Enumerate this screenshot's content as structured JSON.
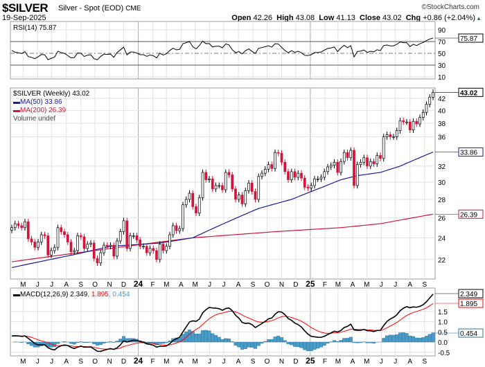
{
  "header": {
    "symbol": "$SILVER",
    "description": "Silver - Spot (EOD)",
    "exchange": "CME",
    "date": "19-Sep-2025",
    "copyright": "©StockCharts.com",
    "open_label": "Open",
    "open": "42.26",
    "high_label": "High",
    "high": "43.08",
    "low_label": "Low",
    "low": "41.13",
    "close_label": "Close",
    "close": "43.02",
    "chg_label": "Chg",
    "chg": "+0.86 (+2.04%)"
  },
  "colors": {
    "up": "#000000",
    "down": "#d2143a",
    "ma50": "#1a1a9c",
    "ma200": "#d2143a",
    "macd": "#000000",
    "signal": "#ff0000",
    "hist": "#4a9cc8",
    "rsi_fill": "#4a7a4a"
  },
  "chart_data": [
    {
      "type": "line",
      "name": "rsi",
      "legend": "RSI(14) 75.87",
      "last_value": "75.87",
      "ticks": [
        "90",
        "70",
        "50",
        "30",
        "10"
      ],
      "tick_values": [
        90,
        70,
        50,
        30,
        10
      ],
      "ylim": [
        10,
        104
      ]
    },
    {
      "type": "candlestick",
      "name": "price",
      "legend": {
        "main": "$SILVER (Weekly) 43.02",
        "ma50": "MA(50) 33.86",
        "ma200": "MA(200) 26.39",
        "volume": "Volume undef"
      },
      "last_value": "43.02",
      "ma50_value": "33.86",
      "ma200_value": "26.39",
      "ticks": [
        "42",
        "40",
        "38",
        "36",
        "32",
        "30",
        "28",
        "26",
        "24",
        "22"
      ],
      "tick_values": [
        42,
        40,
        38,
        36,
        32,
        30,
        28,
        26,
        24,
        22
      ],
      "x_labels": [
        "M",
        "J",
        "J",
        "A",
        "S",
        "O",
        "N",
        "D",
        "24",
        "F",
        "M",
        "A",
        "M",
        "J",
        "J",
        "A",
        "S",
        "O",
        "N",
        "D",
        "25",
        "F",
        "M",
        "A",
        "M",
        "J",
        "J",
        "A",
        "S"
      ],
      "closes": [
        25.0,
        25.4,
        25.2,
        25.0,
        25.6,
        23.9,
        23.6,
        23.1,
        23.6,
        24.3,
        24.2,
        22.4,
        22.8,
        23.1,
        25.0,
        24.6,
        24.3,
        23.6,
        22.7,
        22.8,
        24.2,
        24.1,
        23.0,
        23.4,
        23.5,
        22.1,
        21.7,
        22.6,
        23.3,
        23.2,
        23.3,
        22.3,
        23.7,
        24.6,
        25.7,
        23.0,
        24.2,
        24.2,
        23.8,
        23.2,
        23.2,
        22.6,
        23.0,
        22.8,
        22.0,
        23.4,
        22.8,
        23.2,
        24.3,
        25.2,
        24.7,
        24.9,
        27.4,
        28.0,
        28.7,
        27.2,
        26.5,
        28.2,
        31.2,
        30.3,
        30.4,
        29.2,
        29.6,
        29.6,
        29.1,
        31.2,
        30.9,
        29.2,
        28.0,
        28.5,
        27.5,
        29.0,
        29.9,
        28.9,
        28.0,
        30.7,
        31.1,
        31.6,
        32.2,
        31.7,
        33.8,
        33.7,
        32.5,
        31.3,
        30.3,
        31.3,
        30.6,
        31.1,
        30.5,
        29.4,
        29.3,
        29.6,
        30.4,
        30.4,
        30.6,
        31.3,
        31.9,
        32.1,
        32.5,
        31.2,
        32.6,
        33.8,
        33.1,
        34.1,
        29.6,
        32.2,
        32.5,
        33.1,
        32.0,
        32.6,
        32.3,
        33.4,
        33.0,
        36.0,
        36.3,
        36.0,
        36.0,
        36.9,
        38.4,
        38.2,
        38.2,
        37.0,
        38.3,
        37.9,
        38.9,
        39.7,
        41.0,
        42.2,
        43.02
      ],
      "ma50": [
        [
          0,
          21.3
        ],
        [
          20,
          22.5
        ],
        [
          30,
          23.2
        ],
        [
          45,
          23.5
        ],
        [
          55,
          24.0
        ],
        [
          65,
          25.5
        ],
        [
          75,
          27.0
        ],
        [
          85,
          28.0
        ],
        [
          95,
          29.5
        ],
        [
          100,
          30.3
        ],
        [
          105,
          30.8
        ],
        [
          112,
          31.2
        ],
        [
          118,
          32.0
        ],
        [
          128,
          33.86
        ]
      ],
      "ma200": [
        [
          0,
          21.8
        ],
        [
          30,
          23.0
        ],
        [
          55,
          24.0
        ],
        [
          80,
          24.6
        ],
        [
          100,
          25.0
        ],
        [
          112,
          25.4
        ],
        [
          128,
          26.39
        ]
      ],
      "ylim": [
        20.6,
        44
      ]
    },
    {
      "type": "line",
      "name": "macd",
      "legend_label": "MACD(12,26,9)",
      "macd_value": "2.349",
      "signal_value": "1.895",
      "hist_value": "0.454",
      "ticks": [
        "1.5",
        "1.0",
        "0.5",
        "0.0",
        "-0.5"
      ],
      "tick_values": [
        1.5,
        1.0,
        0.5,
        0.0,
        -0.5
      ],
      "ylim": [
        -0.65,
        2.6
      ]
    }
  ]
}
